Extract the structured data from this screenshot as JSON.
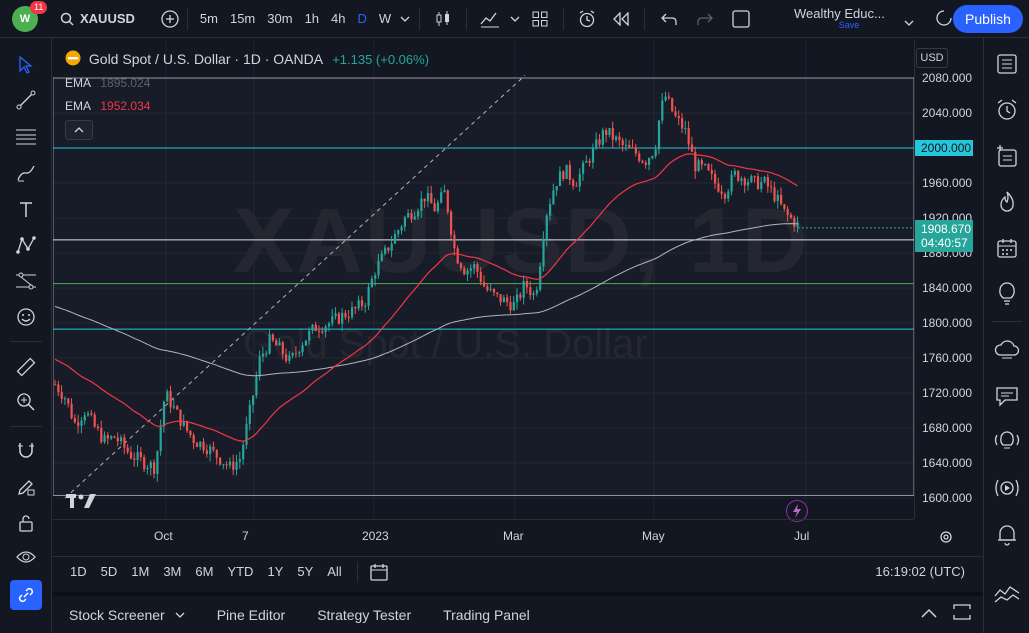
{
  "topbar": {
    "notification_count": "11",
    "symbol": "XAUUSD",
    "timeframes": [
      "5m",
      "15m",
      "30m",
      "1h",
      "4h",
      "D",
      "W"
    ],
    "active_timeframe": "D",
    "layout_name": "Wealthy Educ...",
    "layout_save": "Save",
    "publish_label": "Publish"
  },
  "legend": {
    "title": "Gold Spot / U.S. Dollar · 1D · OANDA",
    "change": "+1.135 (+0.06%)",
    "ema1_label": "EMA",
    "ema1_value": "1895.024",
    "ema2_label": "EMA",
    "ema2_value": "1952.034"
  },
  "watermark": {
    "symbol": "XAUUSD, 1D",
    "name": "Gold Spot / U.S. Dollar"
  },
  "price_scale": {
    "currency": "USD",
    "labels": [
      "2080.000",
      "2040.000",
      "2000.000",
      "1960.000",
      "1920.000",
      "1880.000",
      "1840.000",
      "1800.000",
      "1760.000",
      "1720.000",
      "1680.000",
      "1640.000",
      "1600.000"
    ],
    "last_price": "1908.670",
    "countdown": "04:40:57",
    "level_2000": "2000.000"
  },
  "time_axis": {
    "labels": [
      "Oct",
      "7",
      "2023",
      "Mar",
      "May",
      "Jul"
    ]
  },
  "rangebar": {
    "ranges": [
      "1D",
      "5D",
      "1M",
      "3M",
      "6M",
      "YTD",
      "1Y",
      "5Y",
      "All"
    ],
    "clock": "16:19:02 (UTC)"
  },
  "bottom": {
    "stock_screener": "Stock Screener",
    "pine_editor": "Pine Editor",
    "strategy_tester": "Strategy Tester",
    "trading_panel": "Trading Panel"
  },
  "colors": {
    "up": "#26a69a",
    "down": "#ef5350",
    "ema_fast": "#b2b5be",
    "ema_slow": "#f23645",
    "level": "#26c6da",
    "accent": "#2962ff"
  }
}
